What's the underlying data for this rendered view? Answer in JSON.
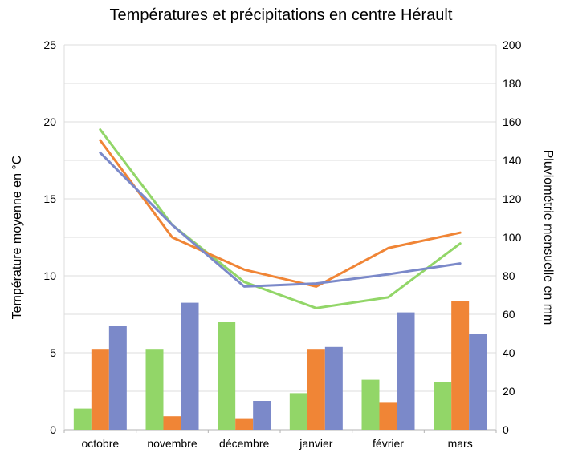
{
  "chart_data": {
    "type": "bar+line",
    "title": "Températures et précipitations en centre Hérault",
    "categories": [
      "octobre",
      "novembre",
      "décembre",
      "janvier",
      "février",
      "mars"
    ],
    "left_axis": {
      "label": "Température moyenne en °C",
      "range": [
        0,
        25
      ],
      "ticks": [
        "0",
        "5",
        "10",
        "15",
        "20",
        "25"
      ]
    },
    "right_axis": {
      "label": "Pluviométrie mensuelle en mm",
      "range": [
        0,
        200
      ],
      "ticks": [
        "0",
        "20",
        "40",
        "60",
        "80",
        "100",
        "120",
        "140",
        "160",
        "180",
        "200"
      ]
    },
    "grid": "horizontal",
    "bar_series": [
      {
        "color": "#92d668",
        "values": [
          11,
          42,
          56,
          19,
          26,
          25
        ]
      },
      {
        "color": "#f08536",
        "values": [
          42,
          7,
          6,
          42,
          14,
          67
        ]
      },
      {
        "color": "#7b89c9",
        "values": [
          54,
          66,
          15,
          43,
          61,
          50
        ]
      }
    ],
    "line_series": [
      {
        "color": "#92d668",
        "values": [
          19.5,
          13.3,
          9.6,
          7.9,
          8.6,
          12.1
        ]
      },
      {
        "color": "#f08536",
        "values": [
          18.8,
          12.5,
          10.4,
          9.3,
          11.8,
          12.8
        ]
      },
      {
        "color": "#7b89c9",
        "values": [
          18.0,
          13.3,
          9.3,
          9.5,
          10.1,
          10.8
        ]
      }
    ]
  }
}
